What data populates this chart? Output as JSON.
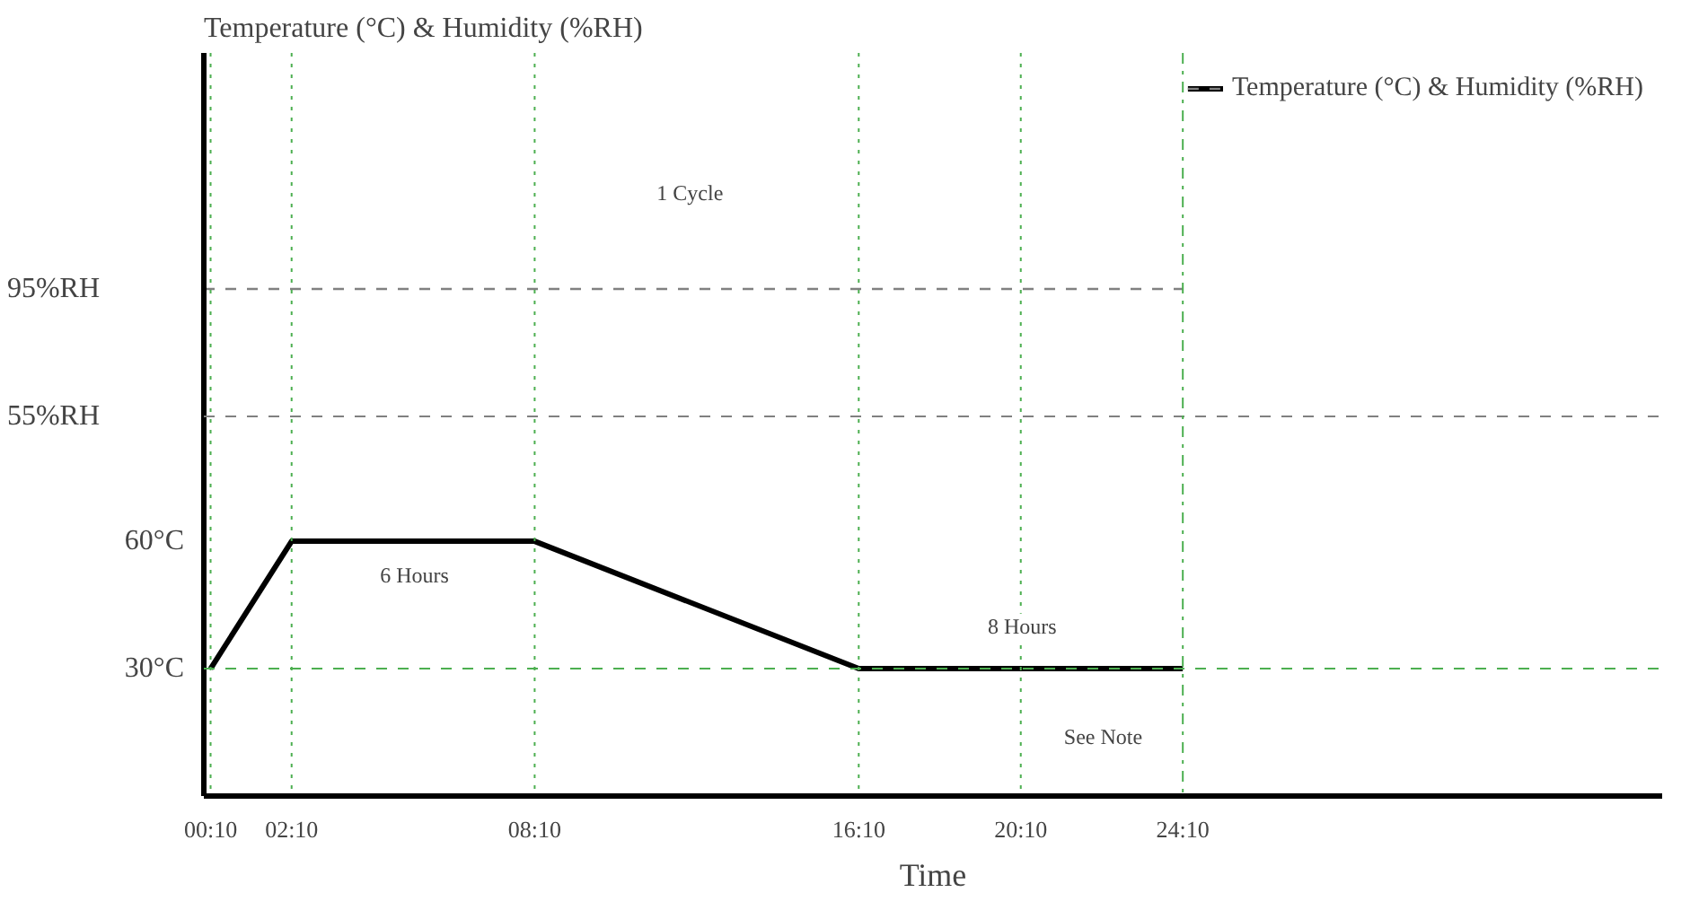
{
  "chart_data": {
    "type": "line",
    "ylabel": "Temperature (°C) & Humidity (%RH)",
    "xlabel": "Time",
    "x": [
      0.1667,
      2.1667,
      8.1667,
      16.1667,
      24.1667
    ],
    "series": [
      {
        "name": "Temperature (°C) & Humidity (%RH)",
        "color": "#000000",
        "values": [
          30,
          60,
          60,
          30,
          30
        ],
        "line_style": "solid"
      },
      {
        "color": "#808080",
        "x": [
          0,
          24.1667
        ],
        "values": [
          95,
          95
        ],
        "axis": "y2",
        "line_style": "dashed"
      }
    ],
    "xlim": [
      0,
      36
    ],
    "xticks": [
      {
        "value": 0.1667,
        "label": "00:10"
      },
      {
        "value": 2.1667,
        "label": "02:10"
      },
      {
        "value": 8.1667,
        "label": "08:10"
      },
      {
        "value": 16.1667,
        "label": "16:10"
      },
      {
        "value": 20.1667,
        "label": "20:10"
      },
      {
        "value": 24.1667,
        "label": "24:10"
      }
    ],
    "ylim": [
      0,
      175
    ],
    "yticks": [
      {
        "value": 30,
        "label": "30°C"
      },
      {
        "value": 60,
        "label": "60°C"
      }
    ],
    "y2lim": [
      -64,
      169
    ],
    "y2ticks": [
      {
        "value": 55,
        "label": "55%RH"
      },
      {
        "value": 95,
        "label": "95%RH"
      }
    ],
    "ref_lines": [
      {
        "axis": "y2",
        "value": 55,
        "color": "#808080",
        "line_style": "dashed"
      },
      {
        "axis": "y",
        "value": 30,
        "color": "#4caf50",
        "line_style": "dashed"
      },
      {
        "axis": "x",
        "value": 0.1667,
        "color": "#4caf50",
        "line_style": "dotted"
      },
      {
        "axis": "x",
        "value": 2.1667,
        "color": "#4caf50",
        "line_style": "dotted"
      },
      {
        "axis": "x",
        "value": 8.1667,
        "color": "#4caf50",
        "line_style": "dotted"
      },
      {
        "axis": "x",
        "value": 16.1667,
        "color": "#4caf50",
        "line_style": "dotted"
      },
      {
        "axis": "x",
        "value": 20.1667,
        "color": "#4caf50",
        "line_style": "dotted"
      },
      {
        "axis": "x",
        "value": 24.1667,
        "color": "#4caf50",
        "line_style": "dashdot"
      }
    ],
    "annotations": [
      {
        "text": "1 Cycle",
        "x": 12,
        "y": 142
      },
      {
        "text": "6 Hours",
        "x": 5.2,
        "y": 52
      },
      {
        "text": "8 Hours",
        "x": 20.2,
        "y": 40
      },
      {
        "text": "See Note",
        "x": 22.2,
        "y": 14
      }
    ],
    "legend": "top right",
    "grid": false
  }
}
